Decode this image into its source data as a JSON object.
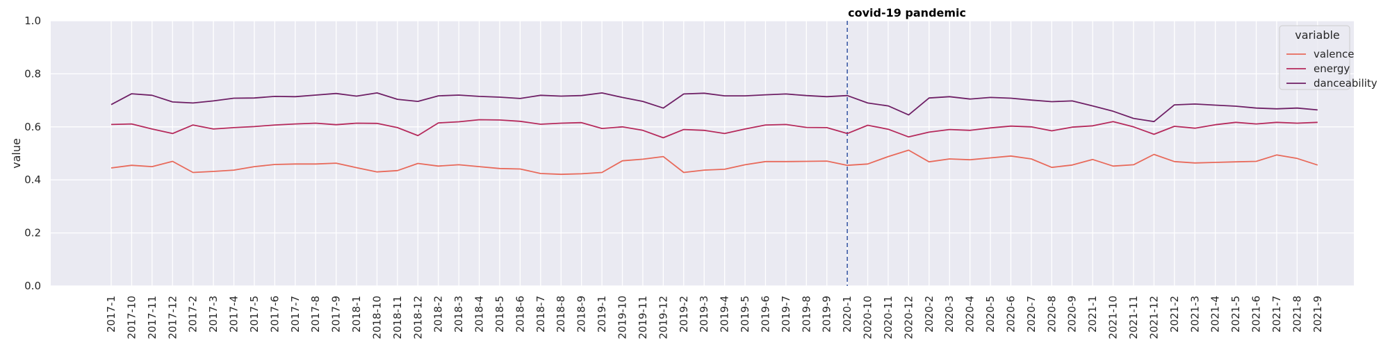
{
  "chart_data": {
    "type": "line",
    "title": "",
    "xlabel": "",
    "ylabel": "value",
    "ylim": [
      0.0,
      1.0
    ],
    "yticks": [
      "0.0",
      "0.2",
      "0.4",
      "0.6",
      "0.8",
      "1.0"
    ],
    "grid": true,
    "legend": {
      "title": "variable",
      "position": "top-right"
    },
    "annotation": {
      "x": "2020-1",
      "label": "covid-19 pandemic",
      "style": "dashed-vertical",
      "color": "#3050a0"
    },
    "categories": [
      "2017-1",
      "2017-10",
      "2017-11",
      "2017-12",
      "2017-2",
      "2017-3",
      "2017-4",
      "2017-5",
      "2017-6",
      "2017-7",
      "2017-8",
      "2017-9",
      "2018-1",
      "2018-10",
      "2018-11",
      "2018-12",
      "2018-2",
      "2018-3",
      "2018-4",
      "2018-5",
      "2018-6",
      "2018-7",
      "2018-8",
      "2018-9",
      "2019-1",
      "2019-10",
      "2019-11",
      "2019-12",
      "2019-2",
      "2019-3",
      "2019-4",
      "2019-5",
      "2019-6",
      "2019-7",
      "2019-8",
      "2019-9",
      "2020-1",
      "2020-10",
      "2020-11",
      "2020-12",
      "2020-2",
      "2020-3",
      "2020-4",
      "2020-5",
      "2020-6",
      "2020-7",
      "2020-8",
      "2020-9",
      "2021-1",
      "2021-10",
      "2021-11",
      "2021-12",
      "2021-2",
      "2021-3",
      "2021-4",
      "2021-5",
      "2021-6",
      "2021-7",
      "2021-8",
      "2021-9"
    ],
    "series": [
      {
        "name": "valence",
        "color": "#e8695a",
        "values": [
          0.445,
          0.455,
          0.45,
          0.47,
          0.428,
          0.432,
          0.437,
          0.45,
          0.458,
          0.46,
          0.46,
          0.463,
          0.446,
          0.43,
          0.435,
          0.462,
          0.452,
          0.457,
          0.45,
          0.443,
          0.441,
          0.424,
          0.421,
          0.423,
          0.428,
          0.472,
          0.478,
          0.488,
          0.428,
          0.437,
          0.44,
          0.457,
          0.469,
          0.469,
          0.47,
          0.471,
          0.455,
          0.46,
          0.488,
          0.512,
          0.468,
          0.479,
          0.476,
          0.483,
          0.49,
          0.479,
          0.447,
          0.456,
          0.477,
          0.452,
          0.457,
          0.496,
          0.469,
          0.464,
          0.466,
          0.468,
          0.47,
          0.494,
          0.481,
          0.456
        ]
      },
      {
        "name": "energy",
        "color": "#b5295b",
        "values": [
          0.609,
          0.611,
          0.592,
          0.575,
          0.607,
          0.592,
          0.597,
          0.601,
          0.607,
          0.611,
          0.614,
          0.608,
          0.614,
          0.613,
          0.597,
          0.567,
          0.615,
          0.619,
          0.627,
          0.626,
          0.621,
          0.61,
          0.614,
          0.616,
          0.594,
          0.6,
          0.587,
          0.559,
          0.59,
          0.587,
          0.575,
          0.592,
          0.607,
          0.609,
          0.598,
          0.597,
          0.575,
          0.606,
          0.591,
          0.562,
          0.58,
          0.59,
          0.587,
          0.596,
          0.603,
          0.6,
          0.585,
          0.599,
          0.604,
          0.62,
          0.6,
          0.572,
          0.602,
          0.595,
          0.608,
          0.617,
          0.611,
          0.617,
          0.614,
          0.617
        ]
      },
      {
        "name": "danceability",
        "color": "#6e1f65",
        "values": [
          0.684,
          0.725,
          0.719,
          0.694,
          0.69,
          0.698,
          0.708,
          0.709,
          0.715,
          0.714,
          0.72,
          0.726,
          0.716,
          0.728,
          0.704,
          0.696,
          0.717,
          0.72,
          0.715,
          0.712,
          0.707,
          0.719,
          0.716,
          0.718,
          0.728,
          0.711,
          0.696,
          0.671,
          0.724,
          0.727,
          0.717,
          0.717,
          0.721,
          0.724,
          0.718,
          0.714,
          0.718,
          0.69,
          0.679,
          0.645,
          0.709,
          0.714,
          0.705,
          0.711,
          0.708,
          0.701,
          0.695,
          0.698,
          0.679,
          0.659,
          0.632,
          0.62,
          0.683,
          0.686,
          0.682,
          0.678,
          0.671,
          0.668,
          0.671,
          0.664
        ]
      }
    ]
  }
}
